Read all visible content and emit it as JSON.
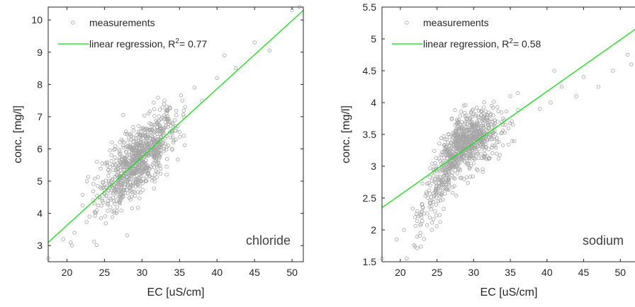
{
  "colors": {
    "points": "#a6a6a6",
    "regression": "#00e600",
    "axes": "#262626",
    "background": "#ffffff"
  },
  "chart_data": [
    {
      "type": "scatter",
      "label": "chloride",
      "xlabel": "EC [uS/cm]",
      "ylabel": "conc. [mg/l]",
      "xlim": [
        17.5,
        51.5
      ],
      "ylim": [
        2.5,
        10.4
      ],
      "xticks": [
        "20",
        "25",
        "30",
        "35",
        "40",
        "45",
        "50"
      ],
      "yticks": [
        "3",
        "4",
        "5",
        "6",
        "7",
        "8",
        "9",
        "10"
      ],
      "legend_position": "top-left",
      "series": [
        {
          "name": "measurements",
          "marker": "open-circle",
          "n_points_approx": 900,
          "cloud_center": [
            29.5,
            5.8
          ],
          "sample_points": [
            [
              17.5,
              2.6
            ],
            [
              19.5,
              3.2
            ],
            [
              20.5,
              3.1
            ],
            [
              21,
              3.4
            ],
            [
              23,
              3.9
            ],
            [
              24,
              4.1
            ],
            [
              25,
              4.6
            ],
            [
              26,
              6.2
            ],
            [
              27.5,
              7.05
            ],
            [
              31,
              6.8
            ],
            [
              33,
              7.5
            ],
            [
              37,
              7.9
            ],
            [
              38,
              7.5
            ],
            [
              40,
              8.2
            ],
            [
              41,
              8.9
            ],
            [
              42.5,
              8.5
            ],
            [
              45,
              9.3
            ],
            [
              47,
              9.05
            ],
            [
              50,
              10.3
            ],
            [
              51,
              10.4
            ]
          ]
        },
        {
          "name": "linear regression",
          "r2_text": "= 0.77",
          "line": [
            [
              17.5,
              3.1
            ],
            [
              51.5,
              10.3
            ]
          ]
        }
      ]
    },
    {
      "type": "scatter",
      "label": "sodium",
      "xlabel": "EC [uS/cm]",
      "ylabel": "conc. [mg/l]",
      "xlim": [
        17.5,
        52
      ],
      "ylim": [
        1.5,
        5.5
      ],
      "xticks": [
        "20",
        "25",
        "30",
        "35",
        "40",
        "45",
        "50"
      ],
      "yticks": [
        "1.5",
        "2",
        "2.5",
        "3",
        "3.5",
        "4",
        "4.5",
        "5",
        "5.5"
      ],
      "legend_position": "top-left",
      "series": [
        {
          "name": "measurements",
          "marker": "open-circle",
          "n_points_approx": 900,
          "cloud_center": [
            28.5,
            3.35
          ],
          "sample_points": [
            [
              17.5,
              1.55
            ],
            [
              19.5,
              1.85
            ],
            [
              20.5,
              2.0
            ],
            [
              22,
              2.2
            ],
            [
              23,
              2.4
            ],
            [
              25,
              2.7
            ],
            [
              31,
              3.8
            ],
            [
              34,
              3.75
            ],
            [
              35,
              4.1
            ],
            [
              36,
              4.15
            ],
            [
              39,
              3.9
            ],
            [
              40.5,
              4.0
            ],
            [
              41,
              4.5
            ],
            [
              42,
              4.25
            ],
            [
              44,
              4.1
            ],
            [
              45,
              4.4
            ],
            [
              47,
              4.25
            ],
            [
              49,
              4.5
            ],
            [
              51,
              4.75
            ],
            [
              51.5,
              4.6
            ]
          ]
        },
        {
          "name": "linear regression",
          "r2_text": "= 0.58",
          "line": [
            [
              17.5,
              2.35
            ],
            [
              52,
              5.15
            ]
          ]
        }
      ]
    }
  ]
}
